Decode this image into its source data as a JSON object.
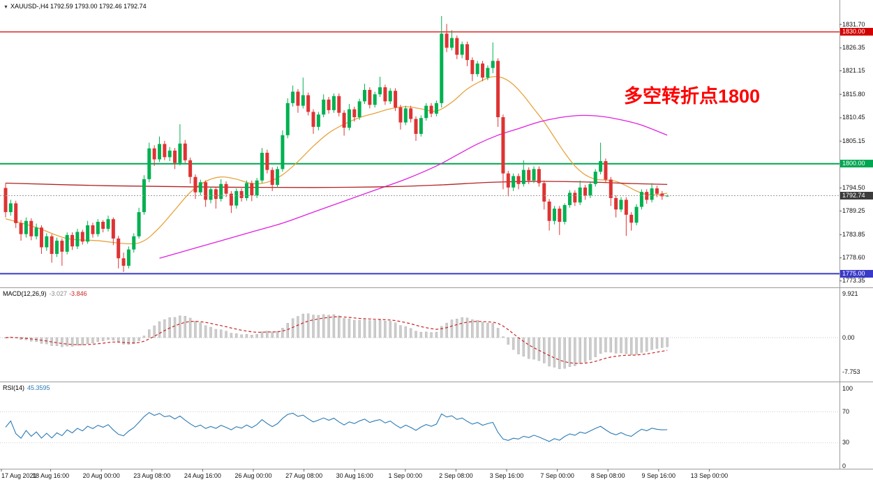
{
  "info_bar": {
    "dropdown_icon": "▼",
    "symbol": "XAUUSD-,H4",
    "ohlc": "1792.59 1793.00 1792.46 1792.74"
  },
  "indicators": {
    "macd": {
      "name": "MACD(12,26,9)",
      "main_value": "-3.027",
      "signal_value": "-3.846"
    },
    "rsi": {
      "name": "RSI(14)",
      "value": "45.3595"
    }
  },
  "annotation": {
    "text": "多空转折点1800"
  },
  "chart_data": {
    "type": "candlestick",
    "title": "XAUUSD- H4",
    "symbol": "XAUUSD-",
    "timeframe": "H4",
    "current": {
      "open": 1792.59,
      "high": 1793.0,
      "low": 1792.46,
      "close": 1792.74
    },
    "colors": {
      "bull": "#00b050",
      "bear": "#de3333",
      "histogram": "#cdcdcd",
      "histogram_border": "#b3b3b3",
      "signal": "#cc2222",
      "rsi": "#2a7ab5",
      "annotation": "#ff0000",
      "grid": "#c8c8c8",
      "separator": "#9a9a9a"
    },
    "hlines": [
      {
        "price": 1830.0,
        "color": "#d20000",
        "width": 1.2,
        "dashed": false
      },
      {
        "price": 1800.0,
        "color": "#00a651",
        "width": 2,
        "dashed": false
      },
      {
        "price": 1775.0,
        "color": "#3a3ac8",
        "width": 2,
        "dashed": false
      },
      {
        "price": 1792.74,
        "color": "#9a9a9a",
        "width": 1,
        "dashed": true
      }
    ],
    "price_axis": {
      "ticks": [
        1831.7,
        1826.35,
        1821.15,
        1815.8,
        1810.45,
        1805.15,
        1794.5,
        1789.25,
        1783.85,
        1778.6,
        1773.35
      ],
      "flags": [
        {
          "text": "1830.00",
          "price": 1830.0,
          "bg": "#d20000"
        },
        {
          "text": "1800.00",
          "price": 1800.0,
          "bg": "#00a651"
        },
        {
          "text": "1792.74",
          "price": 1792.74,
          "bg": "#3c3c3c"
        },
        {
          "text": "1775.00",
          "price": 1775.0,
          "bg": "#3a3ac8"
        }
      ]
    },
    "macd": {
      "fast": 12,
      "slow": 26,
      "signal": 9,
      "axis": [
        {
          "text": "9.921",
          "v": 9.921
        },
        {
          "text": "0.00",
          "v": 0
        },
        {
          "text": "-7.753",
          "v": -7.753
        }
      ]
    },
    "rsi": {
      "period": 14,
      "levels": [
        70,
        30
      ],
      "axis": [
        {
          "text": "100",
          "v": 100
        },
        {
          "text": "70",
          "v": 70
        },
        {
          "text": "30",
          "v": 30
        },
        {
          "text": "0",
          "v": 0
        }
      ]
    },
    "time_axis": [
      "17 Aug 2021",
      "18 Aug 16:00",
      "20 Aug 00:00",
      "23 Aug 08:00",
      "24 Aug 16:00",
      "26 Aug 00:00",
      "27 Aug 08:00",
      "30 Aug 16:00",
      "1 Sep 00:00",
      "2 Sep 08:00",
      "3 Sep 16:00",
      "7 Sep 00:00",
      "8 Sep 08:00",
      "9 Sep 16:00",
      "13 Sep 00:00"
    ],
    "ma_lines": [
      {
        "name": "fast-orange",
        "color": "#e8a33d",
        "points": [
          [
            0,
            1787.5
          ],
          [
            6,
            1785.5
          ],
          [
            12,
            1783.0
          ],
          [
            18,
            1782.5
          ],
          [
            24,
            1781.8
          ],
          [
            27,
            1782.5
          ],
          [
            30,
            1785.5
          ],
          [
            33,
            1789.5
          ],
          [
            36,
            1793.5
          ],
          [
            39,
            1796.0
          ],
          [
            42,
            1797.0
          ],
          [
            45,
            1796.5
          ],
          [
            48,
            1795.5
          ],
          [
            51,
            1795.8
          ],
          [
            54,
            1797.5
          ],
          [
            57,
            1800.5
          ],
          [
            60,
            1804.0
          ],
          [
            63,
            1807.0
          ],
          [
            66,
            1809.0
          ],
          [
            69,
            1810.5
          ],
          [
            72,
            1811.5
          ],
          [
            75,
            1812.5
          ],
          [
            78,
            1813.0
          ],
          [
            81,
            1812.5
          ],
          [
            84,
            1812.0
          ],
          [
            87,
            1814.0
          ],
          [
            90,
            1817.0
          ],
          [
            93,
            1819.0
          ],
          [
            95,
            1819.8
          ],
          [
            97,
            1819.5
          ],
          [
            99,
            1818.0
          ],
          [
            101,
            1815.5
          ],
          [
            103,
            1812.5
          ],
          [
            105,
            1809.5
          ],
          [
            107,
            1806.0
          ],
          [
            109,
            1802.5
          ],
          [
            111,
            1799.5
          ],
          [
            113,
            1797.5
          ],
          [
            115,
            1796.5
          ],
          [
            117,
            1796.3
          ],
          [
            119,
            1796.0
          ],
          [
            121,
            1795.0
          ],
          [
            123,
            1793.8
          ],
          [
            125,
            1793.0
          ],
          [
            127,
            1793.0
          ],
          [
            129,
            1793.3
          ]
        ]
      },
      {
        "name": "slow-magenta",
        "color": "#e020e0",
        "points": [
          [
            30,
            1778.5
          ],
          [
            36,
            1780.5
          ],
          [
            42,
            1782.5
          ],
          [
            48,
            1784.5
          ],
          [
            54,
            1786.5
          ],
          [
            60,
            1789.0
          ],
          [
            66,
            1791.5
          ],
          [
            72,
            1794.0
          ],
          [
            78,
            1796.5
          ],
          [
            84,
            1799.5
          ],
          [
            88,
            1802.0
          ],
          [
            92,
            1804.5
          ],
          [
            96,
            1806.5
          ],
          [
            100,
            1808.0
          ],
          [
            104,
            1809.5
          ],
          [
            108,
            1810.5
          ],
          [
            112,
            1811.0
          ],
          [
            116,
            1810.8
          ],
          [
            120,
            1810.0
          ],
          [
            124,
            1808.8
          ],
          [
            129,
            1806.5
          ]
        ]
      },
      {
        "name": "long-red",
        "color": "#b22222",
        "points": [
          [
            0,
            1795.6
          ],
          [
            20,
            1795.0
          ],
          [
            40,
            1794.7
          ],
          [
            60,
            1794.6
          ],
          [
            75,
            1794.8
          ],
          [
            85,
            1795.2
          ],
          [
            95,
            1795.8
          ],
          [
            105,
            1796.0
          ],
          [
            115,
            1795.8
          ],
          [
            122,
            1795.5
          ],
          [
            129,
            1795.3
          ]
        ]
      }
    ],
    "candles": [
      [
        1794.5,
        1795.6,
        1787.8,
        1789.0
      ],
      [
        1789.0,
        1791.8,
        1788.2,
        1791.0
      ],
      [
        1791.0,
        1791.6,
        1785.4,
        1786.5
      ],
      [
        1786.5,
        1787.2,
        1782.5,
        1784.0
      ],
      [
        1784.0,
        1787.8,
        1783.2,
        1787.0
      ],
      [
        1787.0,
        1787.6,
        1782.6,
        1783.5
      ],
      [
        1783.5,
        1786.4,
        1782.8,
        1785.5
      ],
      [
        1785.5,
        1786.0,
        1779.5,
        1781.0
      ],
      [
        1781.0,
        1784.2,
        1780.2,
        1783.5
      ],
      [
        1783.5,
        1784.0,
        1777.5,
        1779.5
      ],
      [
        1779.5,
        1783.2,
        1778.8,
        1782.5
      ],
      [
        1782.5,
        1783.0,
        1776.8,
        1780.0
      ],
      [
        1780.0,
        1784.4,
        1779.4,
        1783.8
      ],
      [
        1783.8,
        1784.4,
        1780.4,
        1781.2
      ],
      [
        1781.2,
        1785.2,
        1780.6,
        1784.5
      ],
      [
        1784.5,
        1785.0,
        1781.6,
        1782.3
      ],
      [
        1782.3,
        1787.0,
        1781.8,
        1786.0
      ],
      [
        1786.0,
        1786.6,
        1783.2,
        1784.0
      ],
      [
        1784.0,
        1787.4,
        1783.4,
        1786.8
      ],
      [
        1786.8,
        1787.2,
        1784.4,
        1785.2
      ],
      [
        1785.2,
        1788.2,
        1784.6,
        1787.4
      ],
      [
        1787.4,
        1787.8,
        1781.5,
        1783.0
      ],
      [
        1783.0,
        1783.6,
        1776.2,
        1778.5
      ],
      [
        1778.5,
        1779.8,
        1775.4,
        1776.8
      ],
      [
        1776.8,
        1781.2,
        1776.2,
        1780.5
      ],
      [
        1780.5,
        1784.2,
        1779.8,
        1783.5
      ],
      [
        1783.5,
        1790.0,
        1783.0,
        1789.0
      ],
      [
        1789.0,
        1797.4,
        1788.4,
        1796.5
      ],
      [
        1796.5,
        1804.8,
        1795.8,
        1803.5
      ],
      [
        1803.5,
        1804.2,
        1799.5,
        1801.0
      ],
      [
        1801.0,
        1806.2,
        1800.4,
        1804.5
      ],
      [
        1804.5,
        1805.2,
        1800.8,
        1801.5
      ],
      [
        1801.5,
        1803.8,
        1800.6,
        1803.0
      ],
      [
        1803.0,
        1803.6,
        1798.8,
        1800.2
      ],
      [
        1800.2,
        1809.0,
        1799.6,
        1804.6
      ],
      [
        1804.6,
        1805.4,
        1800.2,
        1800.8
      ],
      [
        1800.8,
        1801.4,
        1795.5,
        1797.0
      ],
      [
        1797.0,
        1797.6,
        1792.0,
        1793.5
      ],
      [
        1793.5,
        1796.4,
        1792.8,
        1795.8
      ],
      [
        1795.8,
        1796.2,
        1790.2,
        1791.8
      ],
      [
        1791.8,
        1794.8,
        1791.0,
        1794.2
      ],
      [
        1794.2,
        1794.8,
        1789.8,
        1792.0
      ],
      [
        1792.0,
        1796.5,
        1791.4,
        1795.4
      ],
      [
        1795.4,
        1796.0,
        1792.4,
        1793.2
      ],
      [
        1793.2,
        1793.8,
        1788.8,
        1790.5
      ],
      [
        1790.5,
        1794.4,
        1789.8,
        1793.8
      ],
      [
        1793.8,
        1794.4,
        1791.4,
        1792.2
      ],
      [
        1792.2,
        1796.2,
        1791.6,
        1795.6
      ],
      [
        1795.6,
        1796.2,
        1791.5,
        1792.8
      ],
      [
        1792.8,
        1796.8,
        1792.2,
        1796.2
      ],
      [
        1796.2,
        1803.6,
        1795.6,
        1802.5
      ],
      [
        1802.5,
        1803.2,
        1797.8,
        1798.6
      ],
      [
        1798.6,
        1799.2,
        1793.8,
        1795.2
      ],
      [
        1795.2,
        1799.4,
        1794.6,
        1798.8
      ],
      [
        1798.8,
        1807.6,
        1798.2,
        1806.5
      ],
      [
        1806.5,
        1814.9,
        1805.8,
        1813.8
      ],
      [
        1813.8,
        1817.8,
        1813.0,
        1816.4
      ],
      [
        1816.4,
        1817.0,
        1811.6,
        1813.2
      ],
      [
        1813.2,
        1819.6,
        1812.6,
        1815.6
      ],
      [
        1815.6,
        1816.2,
        1811.0,
        1811.8
      ],
      [
        1811.8,
        1812.4,
        1806.8,
        1808.4
      ],
      [
        1808.4,
        1811.8,
        1807.6,
        1811.2
      ],
      [
        1811.2,
        1815.8,
        1810.6,
        1814.6
      ],
      [
        1814.6,
        1815.2,
        1811.4,
        1812.2
      ],
      [
        1812.2,
        1816.0,
        1811.6,
        1815.4
      ],
      [
        1815.4,
        1816.0,
        1810.8,
        1811.6
      ],
      [
        1811.6,
        1812.2,
        1806.4,
        1808.2
      ],
      [
        1808.2,
        1813.6,
        1807.6,
        1812.4
      ],
      [
        1812.4,
        1813.0,
        1809.6,
        1810.6
      ],
      [
        1810.6,
        1814.8,
        1810.0,
        1814.2
      ],
      [
        1814.2,
        1818.2,
        1813.6,
        1816.8
      ],
      [
        1816.8,
        1817.4,
        1812.6,
        1813.4
      ],
      [
        1813.4,
        1816.4,
        1812.8,
        1815.8
      ],
      [
        1815.8,
        1819.8,
        1815.2,
        1817.4
      ],
      [
        1817.4,
        1818.0,
        1813.4,
        1814.2
      ],
      [
        1814.2,
        1817.2,
        1813.6,
        1816.6
      ],
      [
        1816.6,
        1817.2,
        1812.0,
        1812.8
      ],
      [
        1812.8,
        1813.4,
        1807.8,
        1809.4
      ],
      [
        1809.4,
        1813.2,
        1808.8,
        1812.6
      ],
      [
        1812.6,
        1813.2,
        1809.4,
        1810.2
      ],
      [
        1810.2,
        1810.8,
        1805.2,
        1806.8
      ],
      [
        1806.8,
        1811.0,
        1806.2,
        1810.4
      ],
      [
        1810.4,
        1813.8,
        1809.8,
        1813.2
      ],
      [
        1813.2,
        1813.8,
        1810.6,
        1811.4
      ],
      [
        1811.4,
        1814.4,
        1810.8,
        1813.8
      ],
      [
        1813.8,
        1833.6,
        1812.8,
        1829.6
      ],
      [
        1829.6,
        1831.8,
        1825.4,
        1826.4
      ],
      [
        1826.4,
        1830.4,
        1825.8,
        1828.6
      ],
      [
        1828.6,
        1829.2,
        1823.8,
        1824.8
      ],
      [
        1824.8,
        1827.8,
        1824.0,
        1827.2
      ],
      [
        1827.2,
        1827.8,
        1822.2,
        1823.6
      ],
      [
        1823.6,
        1824.2,
        1818.8,
        1820.4
      ],
      [
        1820.4,
        1823.4,
        1819.8,
        1822.8
      ],
      [
        1822.8,
        1823.4,
        1818.8,
        1819.6
      ],
      [
        1819.6,
        1822.4,
        1819.0,
        1821.8
      ],
      [
        1821.8,
        1827.6,
        1820.6,
        1823.4
      ],
      [
        1823.4,
        1824.0,
        1808.4,
        1810.6
      ],
      [
        1810.6,
        1811.2,
        1794.2,
        1797.8
      ],
      [
        1797.8,
        1798.4,
        1792.6,
        1794.6
      ],
      [
        1794.6,
        1797.8,
        1793.8,
        1797.2
      ],
      [
        1797.2,
        1797.8,
        1794.2,
        1795.4
      ],
      [
        1795.4,
        1800.8,
        1794.8,
        1798.6
      ],
      [
        1798.6,
        1799.2,
        1795.4,
        1796.2
      ],
      [
        1796.2,
        1799.4,
        1795.6,
        1798.8
      ],
      [
        1798.8,
        1799.4,
        1794.8,
        1795.6
      ],
      [
        1795.6,
        1796.2,
        1789.6,
        1791.4
      ],
      [
        1791.4,
        1792.0,
        1784.8,
        1787.0
      ],
      [
        1787.0,
        1790.4,
        1786.2,
        1789.8
      ],
      [
        1789.8,
        1790.4,
        1783.8,
        1786.8
      ],
      [
        1786.8,
        1791.0,
        1786.2,
        1790.6
      ],
      [
        1790.6,
        1794.0,
        1790.0,
        1793.4
      ],
      [
        1793.4,
        1794.0,
        1790.4,
        1791.2
      ],
      [
        1791.2,
        1796.2,
        1790.6,
        1794.6
      ],
      [
        1794.6,
        1795.2,
        1791.8,
        1792.8
      ],
      [
        1792.8,
        1796.0,
        1792.2,
        1795.4
      ],
      [
        1795.4,
        1798.8,
        1794.8,
        1798.2
      ],
      [
        1798.2,
        1804.8,
        1797.6,
        1800.6
      ],
      [
        1800.6,
        1801.2,
        1795.6,
        1796.4
      ],
      [
        1796.4,
        1797.0,
        1790.4,
        1792.2
      ],
      [
        1792.2,
        1792.8,
        1787.8,
        1789.6
      ],
      [
        1789.6,
        1792.4,
        1789.0,
        1791.8
      ],
      [
        1791.8,
        1792.4,
        1783.6,
        1788.4
      ],
      [
        1788.4,
        1789.0,
        1784.8,
        1786.6
      ],
      [
        1786.6,
        1790.8,
        1786.0,
        1790.2
      ],
      [
        1790.2,
        1794.2,
        1789.6,
        1793.6
      ],
      [
        1793.6,
        1794.2,
        1790.9,
        1791.8
      ],
      [
        1791.8,
        1795.6,
        1791.2,
        1794.4
      ],
      [
        1794.4,
        1795.0,
        1792.4,
        1793.2
      ],
      [
        1793.2,
        1793.8,
        1791.8,
        1792.6
      ],
      [
        1792.59,
        1793.0,
        1792.46,
        1792.74
      ]
    ]
  }
}
